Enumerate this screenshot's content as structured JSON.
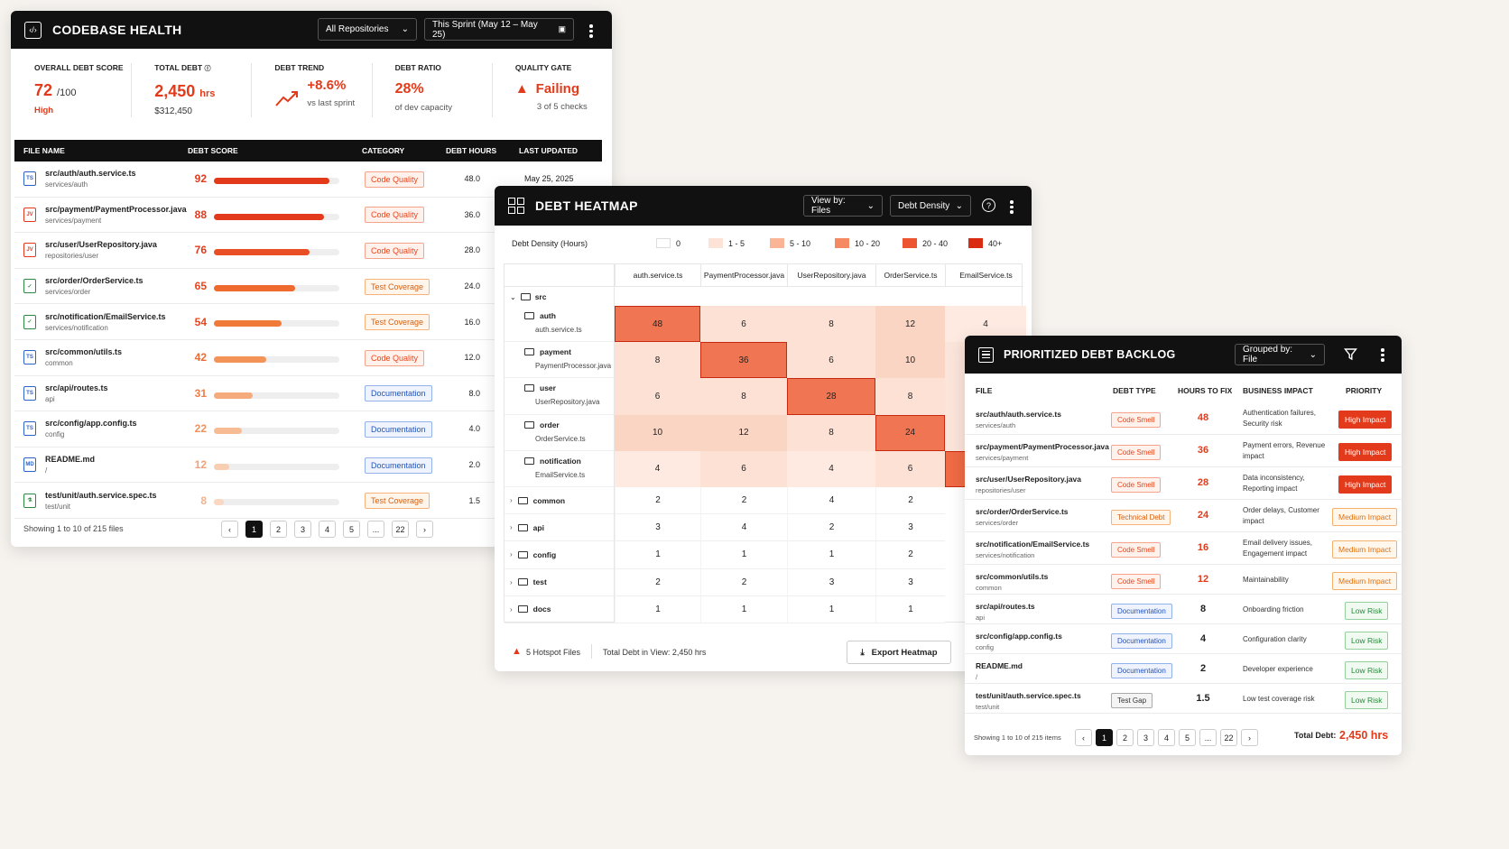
{
  "health": {
    "title": "CODEBASE HEALTH",
    "repo_select": "All Repositories",
    "sprint_select": "This Sprint (May 12 – May 25)",
    "kpis": [
      {
        "label": "OVERALL DEBT SCORE",
        "value": "72",
        "unit": "/100",
        "sub": "High"
      },
      {
        "label": "TOTAL DEBT",
        "value": "2,450",
        "unit": "hrs",
        "sub": "$312,450"
      },
      {
        "label": "DEBT TREND",
        "value": "+8.6%",
        "sub": "vs last sprint"
      },
      {
        "label": "DEBT RATIO",
        "value": "28%",
        "sub": "of dev capacity"
      },
      {
        "label": "QUALITY GATE",
        "value": "Failing",
        "sub": "3 of 5 checks"
      }
    ],
    "columns": [
      "FILE NAME",
      "DEBT SCORE",
      "CATEGORY",
      "DEBT HOURS",
      "LAST UPDATED"
    ],
    "rows": [
      {
        "file": "src/auth/auth.service.ts",
        "path": "services/auth",
        "score": 92,
        "category": "Code Quality",
        "hours": "48.0",
        "updated": "May 25, 2025",
        "icon": "TS",
        "icon_color": "#2d63c8",
        "bar_color": "#e23a1a",
        "score_color": "#e23a1a",
        "cat_style": "orange"
      },
      {
        "file": "src/payment/PaymentProcessor.java",
        "path": "services/payment",
        "score": 88,
        "category": "Code Quality",
        "hours": "36.0",
        "updated": "",
        "icon": "JV",
        "icon_color": "#e23a1a",
        "bar_color": "#e23a1a",
        "score_color": "#e23a1a",
        "cat_style": "orange"
      },
      {
        "file": "src/user/UserRepository.java",
        "path": "repositories/user",
        "score": 76,
        "category": "Code Quality",
        "hours": "28.0",
        "updated": "",
        "icon": "JV",
        "icon_color": "#e23a1a",
        "bar_color": "#e84f24",
        "score_color": "#e23a1a",
        "cat_style": "orange"
      },
      {
        "file": "src/order/OrderService.ts",
        "path": "services/order",
        "score": 65,
        "category": "Test Coverage",
        "hours": "24.0",
        "updated": "",
        "icon": "✓",
        "icon_color": "#2c8a3e",
        "bar_color": "#ef6a2e",
        "score_color": "#e8451c",
        "cat_style": "amber"
      },
      {
        "file": "src/notification/EmailService.ts",
        "path": "services/notification",
        "score": 54,
        "category": "Test Coverage",
        "hours": "16.0",
        "updated": "",
        "icon": "✓",
        "icon_color": "#2c8a3e",
        "bar_color": "#f07a3a",
        "score_color": "#e8451c",
        "cat_style": "amber"
      },
      {
        "file": "src/common/utils.ts",
        "path": "common",
        "score": 42,
        "category": "Code Quality",
        "hours": "12.0",
        "updated": "",
        "icon": "TS",
        "icon_color": "#2d63c8",
        "bar_color": "#f39358",
        "score_color": "#ec6a34",
        "cat_style": "orange"
      },
      {
        "file": "src/api/routes.ts",
        "path": "api",
        "score": 31,
        "category": "Documentation",
        "hours": "8.0",
        "updated": "",
        "icon": "TS",
        "icon_color": "#2d63c8",
        "bar_color": "#f5ab7b",
        "score_color": "#ef7d4a",
        "cat_style": "blue"
      },
      {
        "file": "src/config/app.config.ts",
        "path": "config",
        "score": 22,
        "category": "Documentation",
        "hours": "4.0",
        "updated": "",
        "icon": "TS",
        "icon_color": "#2d63c8",
        "bar_color": "#f7bc94",
        "score_color": "#f1925e",
        "cat_style": "blue"
      },
      {
        "file": "README.md",
        "path": "/",
        "score": 12,
        "category": "Documentation",
        "hours": "2.0",
        "updated": "",
        "icon": "MD",
        "icon_color": "#2d63c8",
        "bar_color": "#f9cfb3",
        "score_color": "#f3a176",
        "cat_style": "blue"
      },
      {
        "file": "test/unit/auth.service.spec.ts",
        "path": "test/unit",
        "score": 8,
        "category": "Test Coverage",
        "hours": "1.5",
        "updated": "",
        "icon": "⚗",
        "icon_color": "#2c8a3e",
        "bar_color": "#fad7c0",
        "score_color": "#f5b08a",
        "cat_style": "amber"
      }
    ],
    "footer": "Showing 1 to 10 of 215 files",
    "pages": [
      "‹",
      "1",
      "2",
      "3",
      "4",
      "5",
      "...",
      "22",
      "›"
    ]
  },
  "heatmap": {
    "title": "DEBT HEATMAP",
    "view_select": "View by: Files",
    "metric_select": "Debt Density",
    "legend_title": "Debt Density (Hours)",
    "legend": [
      {
        "label": "0",
        "color": "#ffffff"
      },
      {
        "label": "1 - 5",
        "color": "#fde3d6"
      },
      {
        "label": "5 - 10",
        "color": "#f9b596"
      },
      {
        "label": "10 - 20",
        "color": "#f48962"
      },
      {
        "label": "20 - 40",
        "color": "#ec5530"
      },
      {
        "label": "40+",
        "color": "#d92b12"
      }
    ],
    "columns": [
      "auth.service.ts",
      "PaymentProcessor.java",
      "UserRepository.java",
      "OrderService.ts",
      "EmailService.ts"
    ],
    "root_folder": "src",
    "rows": [
      {
        "folder": "auth",
        "file": "auth.service.ts",
        "values": [
          "48",
          "6",
          "8",
          "12",
          "4"
        ]
      },
      {
        "folder": "payment",
        "file": "PaymentProcessor.java",
        "values": [
          "8",
          "36",
          "6",
          "10",
          ""
        ]
      },
      {
        "folder": "user",
        "file": "UserRepository.java",
        "values": [
          "6",
          "8",
          "28",
          "8",
          ""
        ]
      },
      {
        "folder": "order",
        "file": "OrderService.ts",
        "values": [
          "10",
          "12",
          "8",
          "24",
          ""
        ]
      },
      {
        "folder": "notification",
        "file": "EmailService.ts",
        "values": [
          "4",
          "6",
          "4",
          "6",
          ""
        ]
      }
    ],
    "collapsed": [
      {
        "folder": "common",
        "values": [
          "2",
          "2",
          "4",
          "2"
        ]
      },
      {
        "folder": "api",
        "values": [
          "3",
          "4",
          "2",
          "3"
        ]
      },
      {
        "folder": "config",
        "values": [
          "1",
          "1",
          "1",
          "2"
        ]
      },
      {
        "folder": "test",
        "values": [
          "2",
          "2",
          "3",
          "3"
        ]
      },
      {
        "folder": "docs",
        "values": [
          "1",
          "1",
          "1",
          "1"
        ]
      }
    ],
    "hotspots": "5 Hotspot Files",
    "total": "Total Debt in View: 2,450 hrs",
    "export": "Export Heatmap"
  },
  "backlog": {
    "title": "PRIORITIZED DEBT BACKLOG",
    "group_select": "Grouped by: File",
    "columns": [
      "FILE",
      "DEBT TYPE",
      "HOURS TO FIX",
      "BUSINESS IMPACT",
      "PRIORITY"
    ],
    "rows": [
      {
        "file": "src/auth/auth.service.ts",
        "path": "services/auth",
        "type": "Code Smell",
        "type_style": "orange",
        "hours": "48",
        "hours_color": "#e23a1a",
        "impact": "Authentication failures, Security risk",
        "priority": "High Impact",
        "prio_style": "high"
      },
      {
        "file": "src/payment/PaymentProcessor.java",
        "path": "services/payment",
        "type": "Code Smell",
        "type_style": "orange",
        "hours": "36",
        "hours_color": "#e23a1a",
        "impact": "Payment errors, Revenue impact",
        "priority": "High Impact",
        "prio_style": "high"
      },
      {
        "file": "src/user/UserRepository.java",
        "path": "repositories/user",
        "type": "Code Smell",
        "type_style": "orange",
        "hours": "28",
        "hours_color": "#e23a1a",
        "impact": "Data inconsistency, Reporting impact",
        "priority": "High Impact",
        "prio_style": "high"
      },
      {
        "file": "src/order/OrderService.ts",
        "path": "services/order",
        "type": "Technical Debt",
        "type_style": "amber",
        "hours": "24",
        "hours_color": "#e23a1a",
        "impact": "Order delays, Customer impact",
        "priority": "Medium Impact",
        "prio_style": "med"
      },
      {
        "file": "src/notification/EmailService.ts",
        "path": "services/notification",
        "type": "Code Smell",
        "type_style": "orange",
        "hours": "16",
        "hours_color": "#e23a1a",
        "impact": "Email delivery issues, Engagement impact",
        "priority": "Medium Impact",
        "prio_style": "med"
      },
      {
        "file": "src/common/utils.ts",
        "path": "common",
        "type": "Code Smell",
        "type_style": "orange",
        "hours": "12",
        "hours_color": "#e23a1a",
        "impact": "Maintainability",
        "priority": "Medium Impact",
        "prio_style": "med"
      },
      {
        "file": "src/api/routes.ts",
        "path": "api",
        "type": "Documentation",
        "type_style": "blue",
        "hours": "8",
        "hours_color": "#222222",
        "impact": "Onboarding friction",
        "priority": "Low Risk",
        "prio_style": "low"
      },
      {
        "file": "src/config/app.config.ts",
        "path": "config",
        "type": "Documentation",
        "type_style": "blue",
        "hours": "4",
        "hours_color": "#222222",
        "impact": "Configuration clarity",
        "priority": "Low Risk",
        "prio_style": "low"
      },
      {
        "file": "README.md",
        "path": "/",
        "type": "Documentation",
        "type_style": "blue",
        "hours": "2",
        "hours_color": "#222222",
        "impact": "Developer experience",
        "priority": "Low Risk",
        "prio_style": "low"
      },
      {
        "file": "test/unit/auth.service.spec.ts",
        "path": "test/unit",
        "type": "Test Gap",
        "type_style": "gray",
        "hours": "1.5",
        "hours_color": "#222222",
        "impact": "Low test coverage risk",
        "priority": "Low Risk",
        "prio_style": "low"
      }
    ],
    "footer": "Showing 1 to 10 of 215 items",
    "pages": [
      "‹",
      "1",
      "2",
      "3",
      "4",
      "5",
      "...",
      "22",
      "›"
    ],
    "total_label": "Total Debt:",
    "total_value": "2,450 hrs"
  }
}
